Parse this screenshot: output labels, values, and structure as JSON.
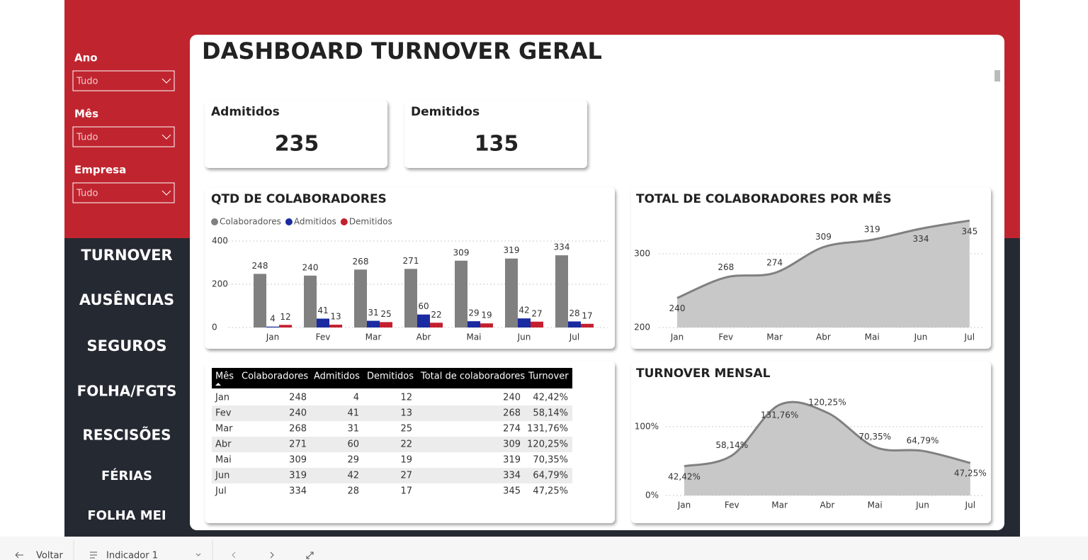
{
  "sidebar": {
    "filters": [
      {
        "label": "Ano",
        "value": "Tudo"
      },
      {
        "label": "Mês",
        "value": "Tudo"
      },
      {
        "label": "Empresa",
        "value": "Tudo"
      }
    ],
    "nav": [
      "TURNOVER",
      "AUSÊNCIAS",
      "SEGUROS",
      "FOLHA/FGTS",
      "RESCISÕES",
      "FÉRIAS",
      "FOLHA MEI"
    ]
  },
  "header": {
    "title": "DASHBOARD TURNOVER GERAL"
  },
  "cards": [
    {
      "label": "Admitidos",
      "value": 235
    },
    {
      "label": "Demitidos",
      "value": 135
    }
  ],
  "chart_data": [
    {
      "type": "bar",
      "title": "QTD DE COLABORADORES",
      "categories": [
        "Jan",
        "Fev",
        "Mar",
        "Abr",
        "Mai",
        "Jun",
        "Jul"
      ],
      "series": [
        {
          "name": "Colaboradores",
          "color": "#808080",
          "values": [
            248,
            240,
            268,
            271,
            309,
            319,
            334
          ]
        },
        {
          "name": "Admitidos",
          "color": "#1a2aa0",
          "values": [
            4,
            41,
            31,
            60,
            29,
            42,
            28
          ]
        },
        {
          "name": "Demitidos",
          "color": "#c4202f",
          "values": [
            12,
            13,
            25,
            22,
            19,
            27,
            17
          ]
        }
      ],
      "ylim": [
        0,
        400
      ],
      "yticks": [
        0,
        200,
        400
      ],
      "grid": true
    },
    {
      "type": "area",
      "title": "TOTAL DE COLABORADORES POR MÊS",
      "categories": [
        "Jan",
        "Fev",
        "Mar",
        "Abr",
        "Mai",
        "Jun",
        "Jul"
      ],
      "values": [
        240,
        268,
        274,
        309,
        319,
        334,
        345
      ],
      "color": "#808080",
      "ylim": [
        200,
        350
      ],
      "yticks": [
        200,
        300
      ],
      "grid": true
    },
    {
      "type": "area",
      "title": "TURNOVER MENSAL",
      "categories": [
        "Jan",
        "Fev",
        "Mar",
        "Abr",
        "Mai",
        "Jun",
        "Jul"
      ],
      "values": [
        42.42,
        58.14,
        131.76,
        120.25,
        70.35,
        64.79,
        47.25
      ],
      "value_labels": [
        "42,42%",
        "58,14%",
        "131,76%",
        "120,25%",
        "70,35%",
        "64,79%",
        "47,25%"
      ],
      "color": "#808080",
      "ylim": [
        0,
        140
      ],
      "yticks": [
        {
          "value": 0,
          "label": "0%"
        },
        {
          "value": 100,
          "label": "100%"
        }
      ],
      "grid": true
    }
  ],
  "table": {
    "columns": [
      "Mês",
      "Colaboradores",
      "Admitidos",
      "Demitidos",
      "Total de colaboradores",
      "Turnover"
    ],
    "rows": [
      [
        "Jan",
        248,
        4,
        12,
        240,
        "42,42%"
      ],
      [
        "Fev",
        240,
        41,
        13,
        268,
        "58,14%"
      ],
      [
        "Mar",
        268,
        31,
        25,
        274,
        "131,76%"
      ],
      [
        "Abr",
        271,
        60,
        22,
        309,
        "120,25%"
      ],
      [
        "Mai",
        309,
        29,
        19,
        319,
        "70,35%"
      ],
      [
        "Jun",
        319,
        42,
        27,
        334,
        "64,79%"
      ],
      [
        "Jul",
        334,
        28,
        17,
        345,
        "47,25%"
      ]
    ]
  },
  "footer": {
    "back": "Voltar",
    "bookmark": "Indicador 1"
  }
}
